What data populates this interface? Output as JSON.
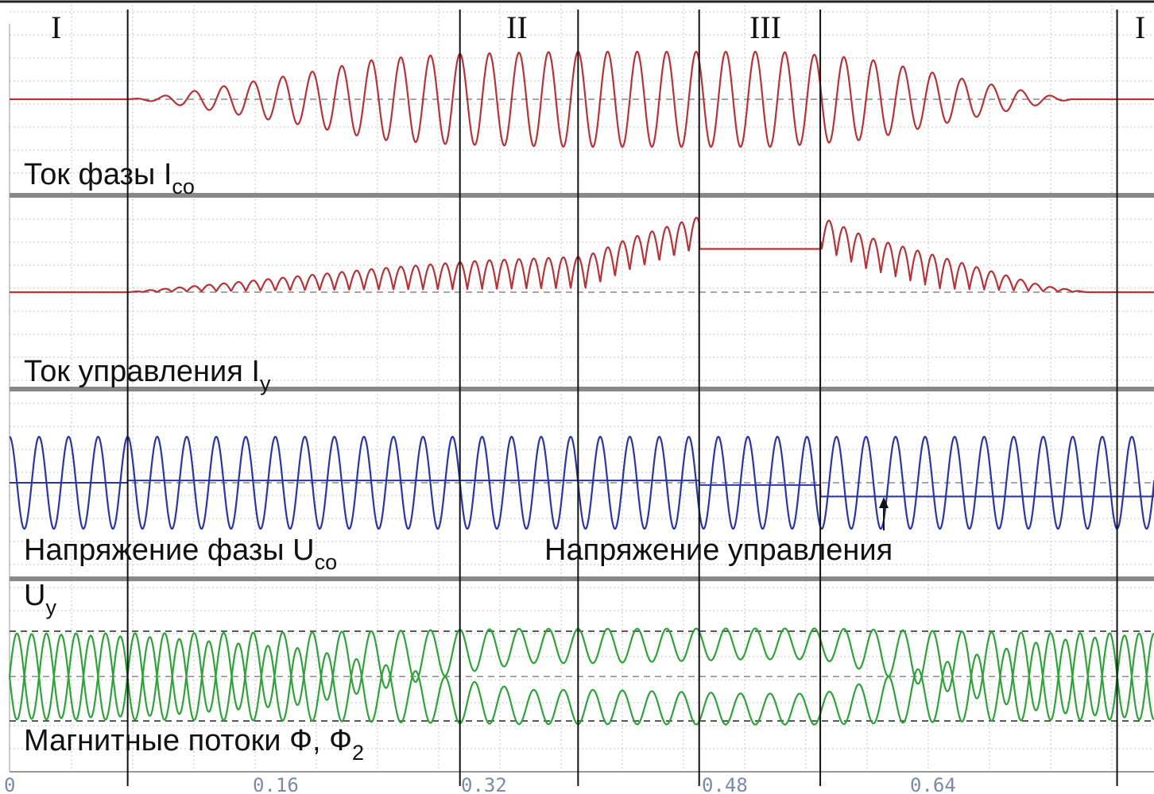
{
  "colors": {
    "current_phase": "#b5343a",
    "current_control": "#b5343a",
    "voltage": "#2b36a3",
    "flux": "#30a23a",
    "grid": "#c4c4c4",
    "separator": "#888888",
    "ticks": "#7a8aa8",
    "background": "#ffffff"
  },
  "chart_data": {
    "type": "line",
    "x_ticks": [
      "0",
      "0.16",
      "0.32",
      "0.48",
      "0.64"
    ],
    "zone_labels": [
      "I",
      "II",
      "III",
      "I"
    ],
    "zone_boundaries": [
      0.08,
      0.305,
      0.385,
      0.467,
      0.549,
      0.75
    ],
    "xlim": [
      0,
      0.775
    ],
    "grid": true,
    "panels": [
      {
        "label": "Ток фазы I",
        "label_sub": "co",
        "series": [
          {
            "type": "amplitude_modulated_sine",
            "amplitude_envelope": [
              [
                0,
                0
              ],
              [
                0.08,
                0
              ],
              [
                0.1,
                0.05
              ],
              [
                0.15,
                0.3
              ],
              [
                0.2,
                0.55
              ],
              [
                0.25,
                0.85
              ],
              [
                0.3,
                0.95
              ],
              [
                0.38,
                1
              ],
              [
                0.47,
                1
              ],
              [
                0.52,
                1
              ],
              [
                0.58,
                0.85
              ],
              [
                0.65,
                0.4
              ],
              [
                0.7,
                0.1
              ],
              [
                0.72,
                0
              ],
              [
                0.775,
                0
              ]
            ]
          }
        ]
      },
      {
        "label": "Ток управления I",
        "label_sub": "y",
        "series": [
          {
            "type": "rectified_ripple",
            "dc_envelope": [
              [
                0,
                0
              ],
              [
                0.08,
                0
              ],
              [
                0.15,
                0.12
              ],
              [
                0.25,
                0.3
              ],
              [
                0.32,
                0.4
              ],
              [
                0.39,
                0.45
              ],
              [
                0.42,
                0.68
              ],
              [
                0.467,
                0.95
              ],
              [
                0.549,
                0.95
              ],
              [
                0.58,
                0.7
              ],
              [
                0.62,
                0.5
              ],
              [
                0.7,
                0.08
              ],
              [
                0.73,
                0
              ],
              [
                0.775,
                0
              ]
            ]
          }
        ]
      },
      {
        "label": "Напряжение фазы U",
        "label_sub": "co",
        "label2": "Напряжение управления",
        "label3": "U",
        "label3_sub": "y",
        "series": [
          {
            "name": "",
            "type": "sine",
            "amplitude": 1
          },
          {
            "name": "",
            "type": "step",
            "levels": [
              [
                0,
                0
              ],
              [
                0.08,
                0.05
              ],
              [
                0.305,
                0.05
              ],
              [
                0.467,
                -0.05
              ],
              [
                0.549,
                -0.3
              ],
              [
                0.75,
                -0.3
              ],
              [
                0.775,
                0.05
              ]
            ]
          }
        ]
      },
      {
        "label": "Магнитные потоки Ф, Ф",
        "label_sub": "2",
        "series": [
          {
            "type": "offset_sine",
            "offset_envelope": [
              [
                0,
                0
              ],
              [
                0.1,
                0.05
              ],
              [
                0.2,
                0.2
              ],
              [
                0.3,
                0.6
              ],
              [
                0.35,
                0.75
              ],
              [
                0.4,
                0.75
              ],
              [
                0.5,
                0.8
              ],
              [
                0.55,
                0.8
              ],
              [
                0.6,
                0.55
              ],
              [
                0.65,
                0.3
              ],
              [
                0.7,
                0.1
              ],
              [
                0.775,
                0
              ]
            ]
          },
          {
            "type": "offset_sine",
            "offset_envelope": [
              [
                0,
                0
              ],
              [
                0.1,
                -0.05
              ],
              [
                0.2,
                -0.2
              ],
              [
                0.3,
                -0.6
              ],
              [
                0.35,
                -0.75
              ],
              [
                0.4,
                -0.75
              ],
              [
                0.5,
                -0.8
              ],
              [
                0.55,
                -0.8
              ],
              [
                0.6,
                -0.55
              ],
              [
                0.65,
                -0.3
              ],
              [
                0.7,
                -0.1
              ],
              [
                0.775,
                0
              ]
            ]
          }
        ]
      }
    ]
  }
}
